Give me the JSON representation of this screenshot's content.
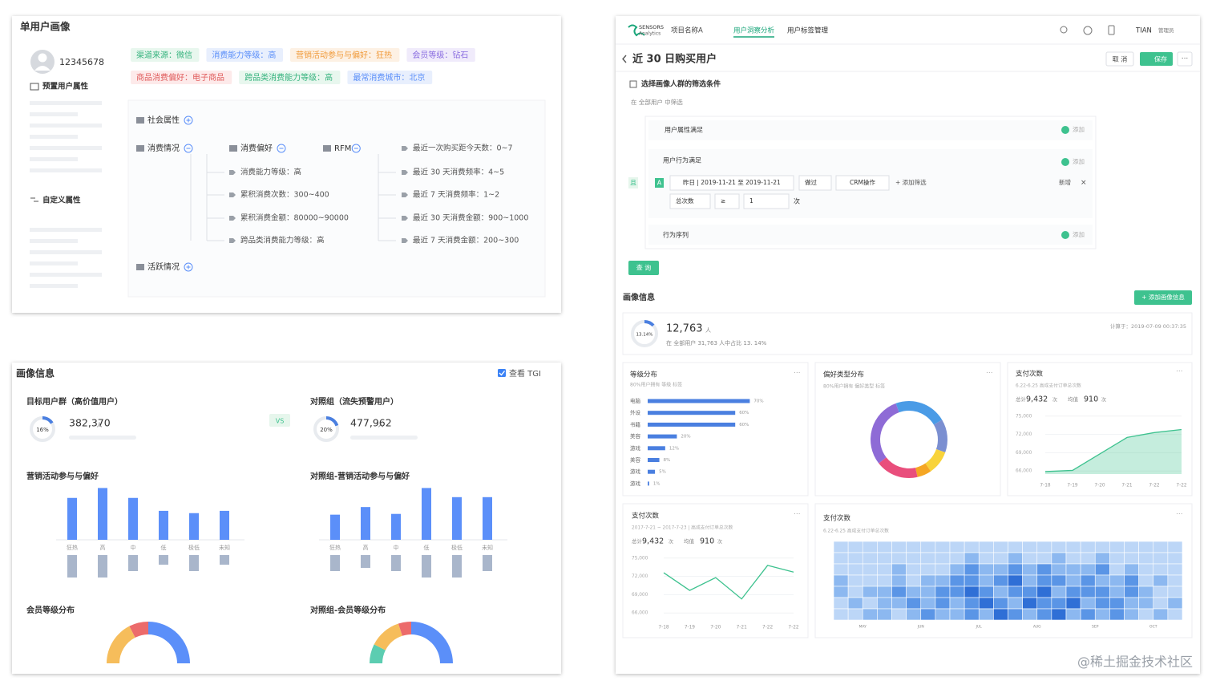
{
  "profile": {
    "title": "单用户画像",
    "user_id": "12345678",
    "preset_label": "预置用户属性",
    "custom_label": "自定义属性",
    "tags": [
      [
        {
          "text": "渠道来源：微信",
          "color": "#36b37e",
          "bg": "#e8f7ee"
        },
        {
          "text": "消费能力等级：高",
          "color": "#5b8ff9",
          "bg": "#e8effd"
        },
        {
          "text": "营销活动参与与偏好：狂热",
          "color": "#f09a3a",
          "bg": "#fdf1e4"
        },
        {
          "text": "会员等级：钻石",
          "color": "#8a6de0",
          "bg": "#f0ebfb"
        }
      ],
      [
        {
          "text": "商品消费偏好：电子商品",
          "color": "#e05b5b",
          "bg": "#fdeaea"
        },
        {
          "text": "跨品类消费能力等级：高",
          "color": "#36b37e",
          "bg": "#e8f7ee"
        },
        {
          "text": "最常消费城市：北京",
          "color": "#5b8ff9",
          "bg": "#e8effd"
        }
      ]
    ],
    "tree": {
      "social": "社会属性",
      "consume": "消费情况",
      "active": "活跃情况",
      "preference": "消费偏好",
      "rfm": "RFM",
      "preference_items": [
        "消费能力等级：高",
        "累积消费次数：300~400",
        "累积消费金额：80000~90000",
        "跨品类消费能力等级：高"
      ],
      "rfm_items": [
        "最近一次购买距今天数：0~7",
        "最近 30 天消费频率：4~5",
        "最近 7 天消费频率：1~2",
        "最近 30 天消费金额：900~1000",
        "最近 7 天消费金额：200~300"
      ]
    }
  },
  "insight": {
    "title": "画像信息",
    "tgi": "查看 TGI",
    "vs": "VS",
    "unit": "人",
    "target": {
      "label": "目标用户群（高价值用户）",
      "value": 16,
      "value_label": "16%",
      "count": "382,370"
    },
    "control": {
      "label": "对照组（流失预警用户）",
      "value": 20,
      "value_label": "20%",
      "count": "477,962"
    },
    "activity_charts": [
      {
        "type": "bar",
        "title": "营销活动参与与偏好",
        "categories": [
          "狂热",
          "高",
          "中",
          "低",
          "极低",
          "未知"
        ],
        "series": [
          {
            "color": "#5b8ff9",
            "values": [
              55,
              68,
              55,
              38,
              35,
              38
            ]
          },
          {
            "color": "#a9b6cb",
            "values": [
              28,
              28,
              20,
              12,
              20,
              12
            ]
          }
        ]
      },
      {
        "type": "bar",
        "title": "对照组-营销活动参与与偏好",
        "categories": [
          "狂热",
          "高",
          "中",
          "低",
          "极低",
          "未知"
        ],
        "series": [
          {
            "color": "#5b8ff9",
            "values": [
              33,
              43,
              34,
              68,
              56,
              56
            ]
          },
          {
            "color": "#a9b6cb",
            "values": [
              20,
              16,
              20,
              28,
              28,
              20
            ]
          }
        ]
      }
    ],
    "member_charts": [
      {
        "type": "half-donut",
        "title": "会员等级分布",
        "values": [
          35,
          15,
          50
        ],
        "colors": [
          "#f6bd5b",
          "#ec6b6b",
          "#5b8ff9"
        ]
      },
      {
        "type": "half-donut",
        "title": "对照组-会员等级分布",
        "values": [
          15,
          25,
          10,
          50
        ],
        "colors": [
          "#5ccdb1",
          "#f6bd5b",
          "#ec6b6b",
          "#5b8ff9"
        ]
      }
    ]
  },
  "analysis": {
    "nav": {
      "logo_top": "SENSORS",
      "logo_bottom": "Analytics",
      "project": "项目名称A",
      "tabs": [
        "用户洞察分析",
        "用户标签管理"
      ],
      "user": "TIAN",
      "role": "管理员"
    },
    "title": "近 30 日购买用户",
    "cancel": "取 消",
    "save": "保存",
    "filter": {
      "heading": "选择画像人群的筛选条件",
      "scope": "在 全部用户 中筛选",
      "attr": "用户属性满足",
      "behavior": "用户行为满足",
      "sequence": "行为序列",
      "add": "添加",
      "and": "且",
      "letter": "A",
      "date": "昨日 | 2019-11-21 至 2019-11-21",
      "did": "做过",
      "event": "CRM操作",
      "add_filter": "+ 添加筛选",
      "new": "新增",
      "metric": "总次数",
      "op": "≥",
      "amount": "1",
      "times": "次",
      "query": "查 询"
    },
    "info_title": "画像信息",
    "add_info": "+ 添加画像信息",
    "summary": {
      "value": 13.14,
      "value_label": "13.14%",
      "count": "12,763",
      "unit": "人",
      "note": "在 全部用户 31,763 人中占比 13. 14%",
      "computed": "计算于：2019-07-09 00:37:35"
    },
    "level": {
      "type": "hbar",
      "title": "等级分布",
      "subtitle": "80%用户拥有 等级 标签",
      "categories": [
        "电脑",
        "外设",
        "书籍",
        "美容",
        "游戏",
        "美容",
        "游戏",
        "游戏"
      ],
      "values": [
        70,
        60,
        60,
        20,
        12,
        8,
        5,
        1
      ],
      "value_labels": [
        "70%",
        "60%",
        "60%",
        "20%",
        "12%",
        "8%",
        "5%",
        "1%"
      ],
      "color": "#4a7fe0"
    },
    "preference": {
      "type": "donut",
      "title": "偏好类型分布",
      "subtitle": "80%用户拥有 偏好类型 标签",
      "values": [
        22,
        14,
        10,
        6,
        18,
        30
      ],
      "colors": [
        "#4a9be6",
        "#7b8fd1",
        "#f8d33a",
        "#f5a623",
        "#e94e7c",
        "#8e6bd6"
      ]
    },
    "payments_area": {
      "type": "area",
      "title": "支付次数",
      "subtitle": "6.22-6.25 高成支付订单总次数",
      "total": "总计",
      "total_value": "9,432",
      "mean": "均值",
      "mean_value": "910",
      "unit": "次",
      "categories": [
        "7-18",
        "7-19",
        "7-20",
        "7-21",
        "7-22",
        "7-22"
      ],
      "values": [
        65900,
        66100,
        68800,
        71500,
        72300,
        72800
      ],
      "ylim": [
        65500,
        75500
      ],
      "yticks": [
        {
          "value": 66000,
          "label": "66,000"
        },
        {
          "value": 69000,
          "label": "69,000"
        },
        {
          "value": 72000,
          "label": "72,000"
        },
        {
          "value": 75000,
          "label": "75,000"
        }
      ],
      "color": "#3ec28f"
    },
    "payments_line": {
      "type": "line",
      "title": "支付次数",
      "subtitle": "2017-7-21 ~ 2017-7-23 | 高成支付订单总次数",
      "total": "总计",
      "total_value": "9,432",
      "mean": "均值",
      "mean_value": "910",
      "unit": "次",
      "categories": [
        "7-18",
        "7-19",
        "7-20",
        "7-21",
        "7-22",
        "7-22"
      ],
      "values": [
        72600,
        69700,
        71800,
        68300,
        73800,
        72700
      ],
      "ylim": [
        65500,
        75500
      ],
      "yticks": [
        {
          "value": 66000,
          "label": "66,000"
        },
        {
          "value": 69000,
          "label": "69,000"
        },
        {
          "value": 72000,
          "label": "72,000"
        },
        {
          "value": 75000,
          "label": "75,000"
        }
      ],
      "color": "#3ec28f"
    },
    "payments_heat": {
      "type": "heatmap",
      "title": "支付次数",
      "subtitle": "6.22-6.25 高成支付订单总次数",
      "months": [
        "MAY",
        "JUN",
        "JUL",
        "AUG",
        "SEP",
        "OCT"
      ],
      "colors": [
        "#e3eefc",
        "#bcd6f7",
        "#8cb8f0",
        "#5a95e6",
        "#2f6fd6"
      ],
      "values": [
        [
          1,
          1,
          1,
          1,
          1,
          1,
          1,
          1,
          1,
          1,
          1,
          1,
          1,
          1,
          1,
          1,
          1,
          1,
          1,
          1,
          1,
          1,
          1,
          1
        ],
        [
          1,
          1,
          1,
          1,
          1,
          1,
          1,
          1,
          1,
          2,
          1,
          1,
          2,
          1,
          1,
          2,
          1,
          1,
          2,
          1,
          1,
          1,
          1,
          1
        ],
        [
          1,
          1,
          1,
          1,
          2,
          1,
          1,
          1,
          2,
          3,
          2,
          2,
          3,
          2,
          3,
          2,
          2,
          2,
          3,
          1,
          2,
          1,
          1,
          1
        ],
        [
          2,
          1,
          1,
          1,
          2,
          1,
          2,
          2,
          3,
          3,
          2,
          3,
          4,
          2,
          3,
          3,
          2,
          3,
          2,
          2,
          3,
          1,
          2,
          1
        ],
        [
          2,
          1,
          2,
          2,
          3,
          2,
          2,
          3,
          3,
          4,
          3,
          2,
          3,
          3,
          4,
          2,
          3,
          3,
          3,
          2,
          3,
          2,
          1,
          1
        ],
        [
          1,
          2,
          1,
          2,
          2,
          3,
          2,
          3,
          2,
          3,
          4,
          3,
          2,
          4,
          3,
          3,
          4,
          2,
          3,
          3,
          2,
          2,
          1,
          2
        ],
        [
          1,
          1,
          2,
          2,
          1,
          2,
          3,
          2,
          2,
          3,
          2,
          4,
          3,
          2,
          3,
          4,
          2,
          3,
          2,
          3,
          2,
          1,
          2,
          1
        ]
      ]
    }
  },
  "footer": "@稀土掘金技术社区"
}
